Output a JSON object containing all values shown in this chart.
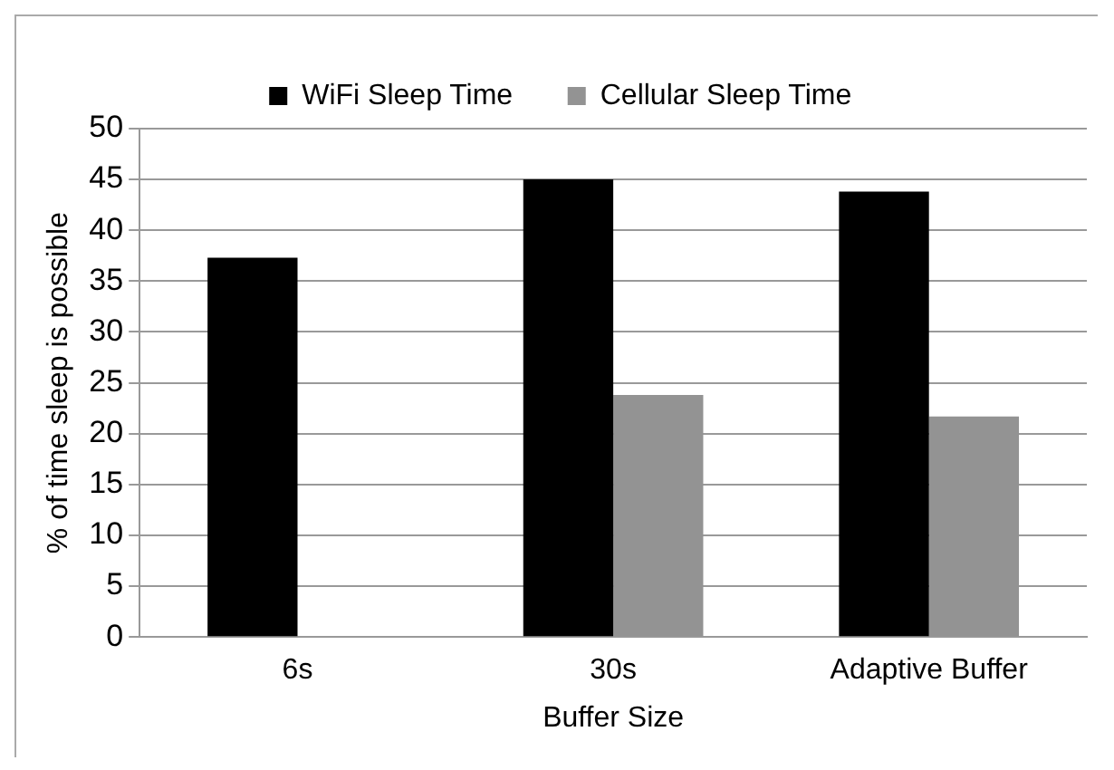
{
  "chart_data": {
    "type": "bar",
    "xlabel": "Buffer Size",
    "ylabel": "% of time sleep is possible",
    "categories": [
      "6s",
      "30s",
      "Adaptive Buffer"
    ],
    "series": [
      {
        "name": "WiFi Sleep Time",
        "color": "#000000",
        "values": [
          37.3,
          45,
          43.8
        ]
      },
      {
        "name": "Cellular Sleep Time",
        "color": "#939393",
        "values": [
          0,
          23.8,
          21.7
        ]
      }
    ],
    "ylim": [
      0,
      50
    ],
    "yticks": [
      0,
      5,
      10,
      15,
      20,
      25,
      30,
      35,
      40,
      45,
      50
    ],
    "grid": "y",
    "legend": "top"
  }
}
